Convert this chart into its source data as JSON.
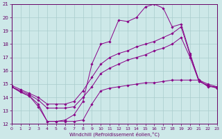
{
  "xlabel": "Windchill (Refroidissement éolien,°C)",
  "xlim": [
    0,
    23
  ],
  "ylim": [
    12,
    21
  ],
  "xticks": [
    0,
    1,
    2,
    3,
    4,
    5,
    6,
    7,
    8,
    9,
    10,
    11,
    12,
    13,
    14,
    15,
    16,
    17,
    18,
    19,
    20,
    21,
    22,
    23
  ],
  "yticks": [
    12,
    13,
    14,
    15,
    16,
    17,
    18,
    19,
    20,
    21
  ],
  "background_color": "#cde8e8",
  "grid_color": "#a8cccc",
  "line_color": "#880088",
  "line1_y": [
    14.8,
    14.4,
    14.1,
    13.5,
    12.2,
    12.2,
    12.2,
    12.2,
    12.3,
    13.5,
    14.5,
    14.7,
    14.8,
    14.9,
    15.0,
    15.1,
    15.1,
    15.2,
    15.3,
    15.3,
    15.3,
    15.3,
    14.8,
    14.8
  ],
  "line2_y": [
    14.8,
    14.5,
    14.2,
    13.8,
    13.2,
    13.2,
    13.2,
    13.3,
    14.0,
    14.8,
    15.8,
    16.2,
    16.5,
    16.8,
    17.0,
    17.2,
    17.5,
    17.7,
    18.0,
    18.5,
    17.0,
    15.2,
    14.9,
    14.7
  ],
  "line3_y": [
    14.9,
    14.6,
    14.3,
    14.0,
    13.5,
    13.5,
    13.5,
    13.7,
    14.5,
    15.5,
    16.5,
    17.0,
    17.3,
    17.5,
    17.8,
    18.0,
    18.2,
    18.5,
    18.8,
    19.3,
    17.2,
    15.3,
    15.0,
    14.8
  ],
  "line4_y": [
    14.8,
    14.4,
    14.1,
    13.3,
    12.2,
    12.2,
    12.3,
    12.7,
    13.7,
    16.5,
    18.0,
    18.2,
    19.8,
    19.7,
    20.0,
    20.8,
    21.0,
    20.7,
    19.3,
    19.5,
    17.3,
    15.2,
    14.9,
    14.7
  ]
}
